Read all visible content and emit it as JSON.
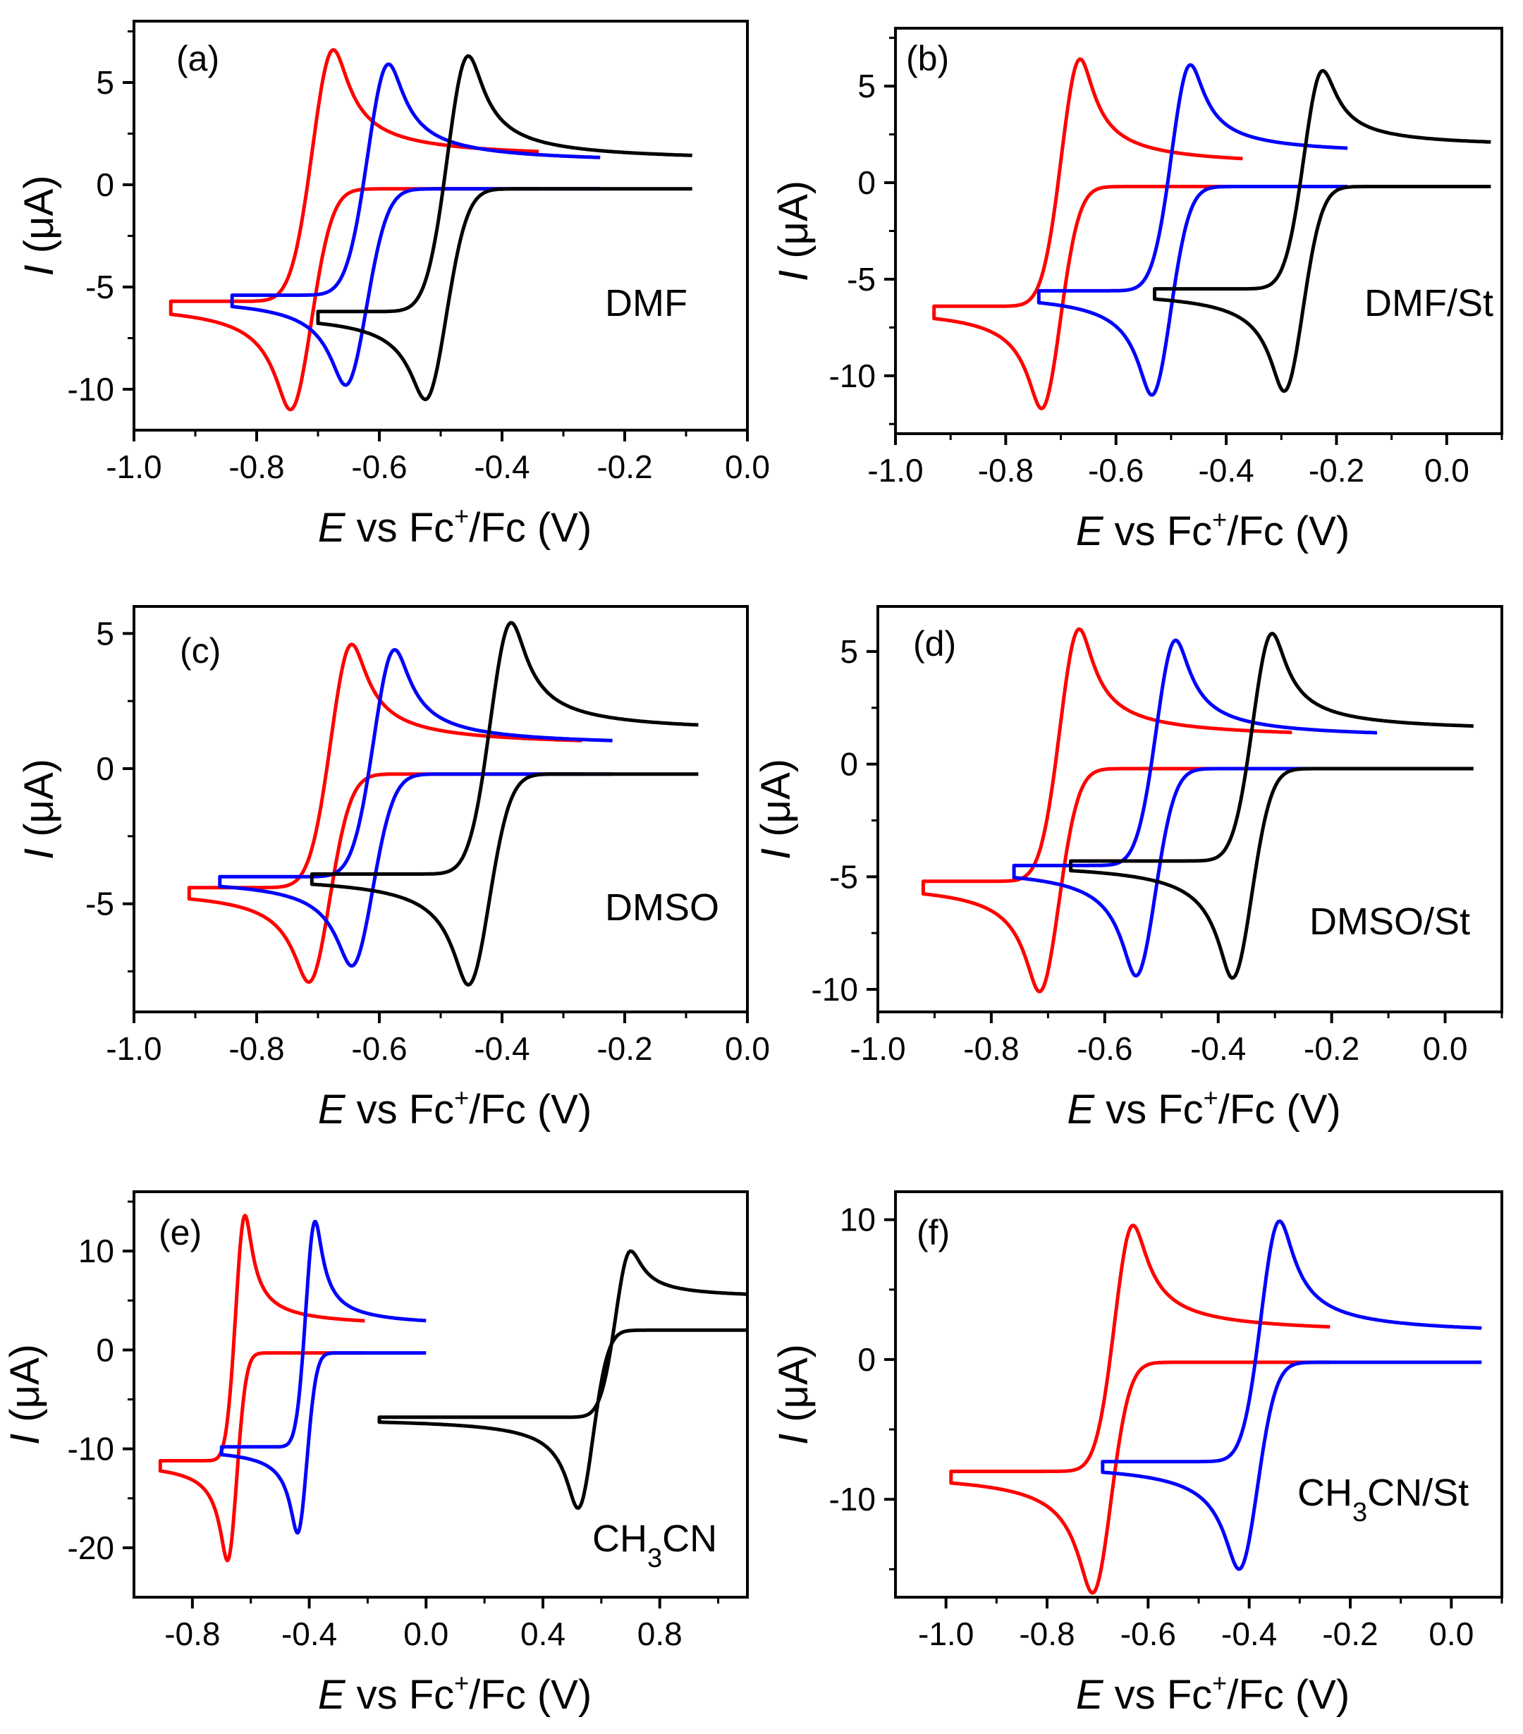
{
  "colors": {
    "series": [
      "#ff0000",
      "#0000ff",
      "#000000"
    ],
    "axis": "#000000",
    "background": "#ffffff"
  },
  "common": {
    "xlabel_italic": "E",
    "xlabel_rest": " vs Fc",
    "xlabel_sup": "+",
    "xlabel_tail": "/Fc (V)",
    "ylabel_italic": "I",
    "ylabel_rest": " (μA)"
  },
  "chart_data": [
    {
      "panel": "(a)",
      "label": "DMF",
      "type": "line",
      "xlabel": "E vs Fc+/Fc (V)",
      "ylabel": "I (μA)",
      "xlim": [
        -1.0,
        0.0
      ],
      "ylim": [
        -12,
        8
      ],
      "xticks": [
        -1.0,
        -0.8,
        -0.6,
        -0.4,
        -0.2,
        0.0
      ],
      "xticklabels": [
        "-1.0",
        "-0.8",
        "-0.6",
        "-0.4",
        "-0.2",
        "0.0"
      ],
      "yticks": [
        -10,
        -5,
        0,
        5
      ],
      "yticklabels": [
        "-10",
        "-5",
        "0",
        "5"
      ],
      "series": [
        {
          "color": "#ff0000",
          "E0": -0.71,
          "ipc": -11.0,
          "ipa": 6.6,
          "Elow": -0.94,
          "Ehigh": -0.34,
          "w": 0.03,
          "d": 0.035,
          "islow": -5.7,
          "tailA": 1.25,
          "tailC": -0.2,
          "sep": 0.07
        },
        {
          "color": "#0000ff",
          "E0": -0.62,
          "ipc": -9.8,
          "ipa": 5.9,
          "Elow": -0.84,
          "Ehigh": -0.24,
          "w": 0.03,
          "d": 0.035,
          "islow": -5.4,
          "tailA": 1.0,
          "tailC": -0.2,
          "sep": 0.07
        },
        {
          "color": "#000000",
          "E0": -0.49,
          "ipc": -10.5,
          "ipa": 6.3,
          "Elow": -0.7,
          "Ehigh": -0.09,
          "w": 0.03,
          "d": 0.035,
          "islow": -6.2,
          "tailA": 1.1,
          "tailC": -0.2,
          "sep": 0.07
        }
      ]
    },
    {
      "panel": "(b)",
      "label": "DMF/St",
      "type": "line",
      "xlabel": "E vs Fc+/Fc (V)",
      "ylabel": "I (μA)",
      "xlim": [
        -1.0,
        0.1
      ],
      "ylim": [
        -13,
        8
      ],
      "xticks": [
        -1.0,
        -0.8,
        -0.6,
        -0.4,
        -0.2,
        0.0
      ],
      "xticklabels": [
        "-1.0",
        "-0.8",
        "-0.6",
        "-0.4",
        "-0.2",
        "0.0"
      ],
      "yticks": [
        -10,
        -5,
        0,
        5
      ],
      "yticklabels": [
        "-10",
        "-5",
        "0",
        "5"
      ],
      "series": [
        {
          "color": "#ff0000",
          "E0": -0.7,
          "ipc": -11.7,
          "ipa": 6.4,
          "Elow": -0.93,
          "Ehigh": -0.37,
          "w": 0.03,
          "d": 0.035,
          "islow": -6.4,
          "tailA": 0.8,
          "tailC": -0.2,
          "sep": 0.07
        },
        {
          "color": "#0000ff",
          "E0": -0.5,
          "ipc": -11.0,
          "ipa": 6.1,
          "Elow": -0.74,
          "Ehigh": -0.18,
          "w": 0.03,
          "d": 0.035,
          "islow": -5.6,
          "tailA": 1.4,
          "tailC": -0.2,
          "sep": 0.07
        },
        {
          "color": "#000000",
          "E0": -0.26,
          "ipc": -10.8,
          "ipa": 5.8,
          "Elow": -0.53,
          "Ehigh": 0.08,
          "w": 0.03,
          "d": 0.035,
          "islow": -5.5,
          "tailA": 1.8,
          "tailC": -0.2,
          "sep": 0.07
        }
      ]
    },
    {
      "panel": "(c)",
      "label": "DMSO",
      "type": "line",
      "xlabel": "E vs Fc+/Fc (V)",
      "ylabel": "I (μA)",
      "xlim": [
        -1.0,
        0.0
      ],
      "ylim": [
        -9,
        6
      ],
      "xticks": [
        -1.0,
        -0.8,
        -0.6,
        -0.4,
        -0.2,
        0.0
      ],
      "xticklabels": [
        "-1.0",
        "-0.8",
        "-0.6",
        "-0.4",
        "-0.2",
        "0.0"
      ],
      "yticks": [
        -5,
        0,
        5
      ],
      "yticklabels": [
        "-5",
        "0",
        "5"
      ],
      "series": [
        {
          "color": "#ff0000",
          "E0": -0.68,
          "ipc": -7.9,
          "ipa": 4.6,
          "Elow": -0.91,
          "Ehigh": -0.27,
          "w": 0.03,
          "d": 0.035,
          "islow": -4.4,
          "tailA": 0.8,
          "tailC": -0.2,
          "sep": 0.07
        },
        {
          "color": "#0000ff",
          "E0": -0.61,
          "ipc": -7.3,
          "ipa": 4.4,
          "Elow": -0.86,
          "Ehigh": -0.22,
          "w": 0.03,
          "d": 0.035,
          "islow": -4.0,
          "tailA": 0.8,
          "tailC": -0.2,
          "sep": 0.07
        },
        {
          "color": "#000000",
          "E0": -0.42,
          "ipc": -8.0,
          "ipa": 5.4,
          "Elow": -0.71,
          "Ehigh": -0.08,
          "w": 0.03,
          "d": 0.035,
          "islow": -3.9,
          "tailA": 1.3,
          "tailC": -0.2,
          "sep": 0.07
        }
      ]
    },
    {
      "panel": "(d)",
      "label": "DMSO/St",
      "type": "line",
      "xlabel": "E vs Fc+/Fc (V)",
      "ylabel": "I (μA)",
      "xlim": [
        -1.0,
        0.1
      ],
      "ylim": [
        -11,
        7
      ],
      "xticks": [
        -1.0,
        -0.8,
        -0.6,
        -0.4,
        -0.2,
        0.0
      ],
      "xticklabels": [
        "-1.0",
        "-0.8",
        "-0.6",
        "-0.4",
        "-0.2",
        "0.0"
      ],
      "yticks": [
        -10,
        -5,
        0,
        5
      ],
      "yticklabels": [
        "-10",
        "-5",
        "0",
        "5"
      ],
      "series": [
        {
          "color": "#ff0000",
          "E0": -0.68,
          "ipc": -10.1,
          "ipa": 6.0,
          "Elow": -0.92,
          "Ehigh": -0.27,
          "w": 0.03,
          "d": 0.035,
          "islow": -5.2,
          "tailA": 1.1,
          "tailC": -0.2,
          "sep": 0.07
        },
        {
          "color": "#0000ff",
          "E0": -0.51,
          "ipc": -9.4,
          "ipa": 5.5,
          "Elow": -0.76,
          "Ehigh": -0.12,
          "w": 0.03,
          "d": 0.035,
          "islow": -4.5,
          "tailA": 1.1,
          "tailC": -0.2,
          "sep": 0.07
        },
        {
          "color": "#000000",
          "E0": -0.34,
          "ipc": -9.5,
          "ipa": 5.8,
          "Elow": -0.66,
          "Ehigh": 0.05,
          "w": 0.03,
          "d": 0.035,
          "islow": -4.3,
          "tailA": 1.4,
          "tailC": -0.2,
          "sep": 0.07
        }
      ]
    },
    {
      "panel": "(e)",
      "label_main": "CH",
      "label_sub": "3",
      "label_tail": "CN",
      "type": "line",
      "xlabel": "E vs Fc+/Fc (V)",
      "ylabel": "I (μA)",
      "xlim": [
        -1.0,
        1.1
      ],
      "ylim": [
        -25,
        16
      ],
      "xticks": [
        -0.8,
        -0.4,
        0.0,
        0.4,
        0.8
      ],
      "xticklabels": [
        "-0.8",
        "-0.4",
        "0.0",
        "0.4",
        "0.8"
      ],
      "yticks": [
        -20,
        -10,
        0,
        10
      ],
      "yticklabels": [
        "-20",
        "-10",
        "0",
        "10"
      ],
      "series": [
        {
          "color": "#ff0000",
          "E0": -0.65,
          "ipc": -21.3,
          "ipa": 13.6,
          "Elow": -0.91,
          "Ehigh": -0.21,
          "w": 0.028,
          "d": 0.035,
          "islow": -11.2,
          "tailA": 2.3,
          "tailC": -0.3,
          "sep": 0.06
        },
        {
          "color": "#0000ff",
          "E0": -0.41,
          "ipc": -18.5,
          "ipa": 13.0,
          "Elow": -0.7,
          "Ehigh": 0.0,
          "w": 0.028,
          "d": 0.035,
          "islow": -9.8,
          "tailA": 2.3,
          "tailC": -0.3,
          "sep": 0.06
        },
        {
          "color": "#000000",
          "E0": 0.61,
          "ipc": -16.0,
          "ipa": 10.0,
          "Elow": -0.16,
          "Ehigh": 1.1,
          "w": 0.045,
          "d": 0.055,
          "islow": -6.8,
          "tailA": 5.2,
          "tailC": 2.0,
          "sep": 0.18
        }
      ]
    },
    {
      "panel": "(f)",
      "label_main": "CH",
      "label_sub": "3",
      "label_tail": "CN/St",
      "type": "line",
      "xlabel": "E vs Fc+/Fc (V)",
      "ylabel": "I (μA)",
      "xlim": [
        -1.1,
        0.1
      ],
      "ylim": [
        -17,
        12
      ],
      "xticks": [
        -1.0,
        -0.8,
        -0.6,
        -0.4,
        -0.2,
        0.0
      ],
      "xticklabels": [
        "-1.0",
        "-0.8",
        "-0.6",
        "-0.4",
        "-0.2",
        "0.0"
      ],
      "yticks": [
        -10,
        0,
        10
      ],
      "yticklabels": [
        "-10",
        "0",
        "10"
      ],
      "series": [
        {
          "color": "#ff0000",
          "E0": -0.67,
          "ipc": -16.7,
          "ipa": 9.6,
          "Elow": -0.99,
          "Ehigh": -0.24,
          "w": 0.032,
          "d": 0.04,
          "islow": -8.0,
          "tailA": 1.8,
          "tailC": -0.2,
          "sep": 0.08
        },
        {
          "color": "#0000ff",
          "E0": -0.38,
          "ipc": -15.0,
          "ipa": 9.9,
          "Elow": -0.69,
          "Ehigh": 0.06,
          "w": 0.032,
          "d": 0.04,
          "islow": -7.3,
          "tailA": 1.7,
          "tailC": -0.2,
          "sep": 0.08
        }
      ]
    }
  ]
}
